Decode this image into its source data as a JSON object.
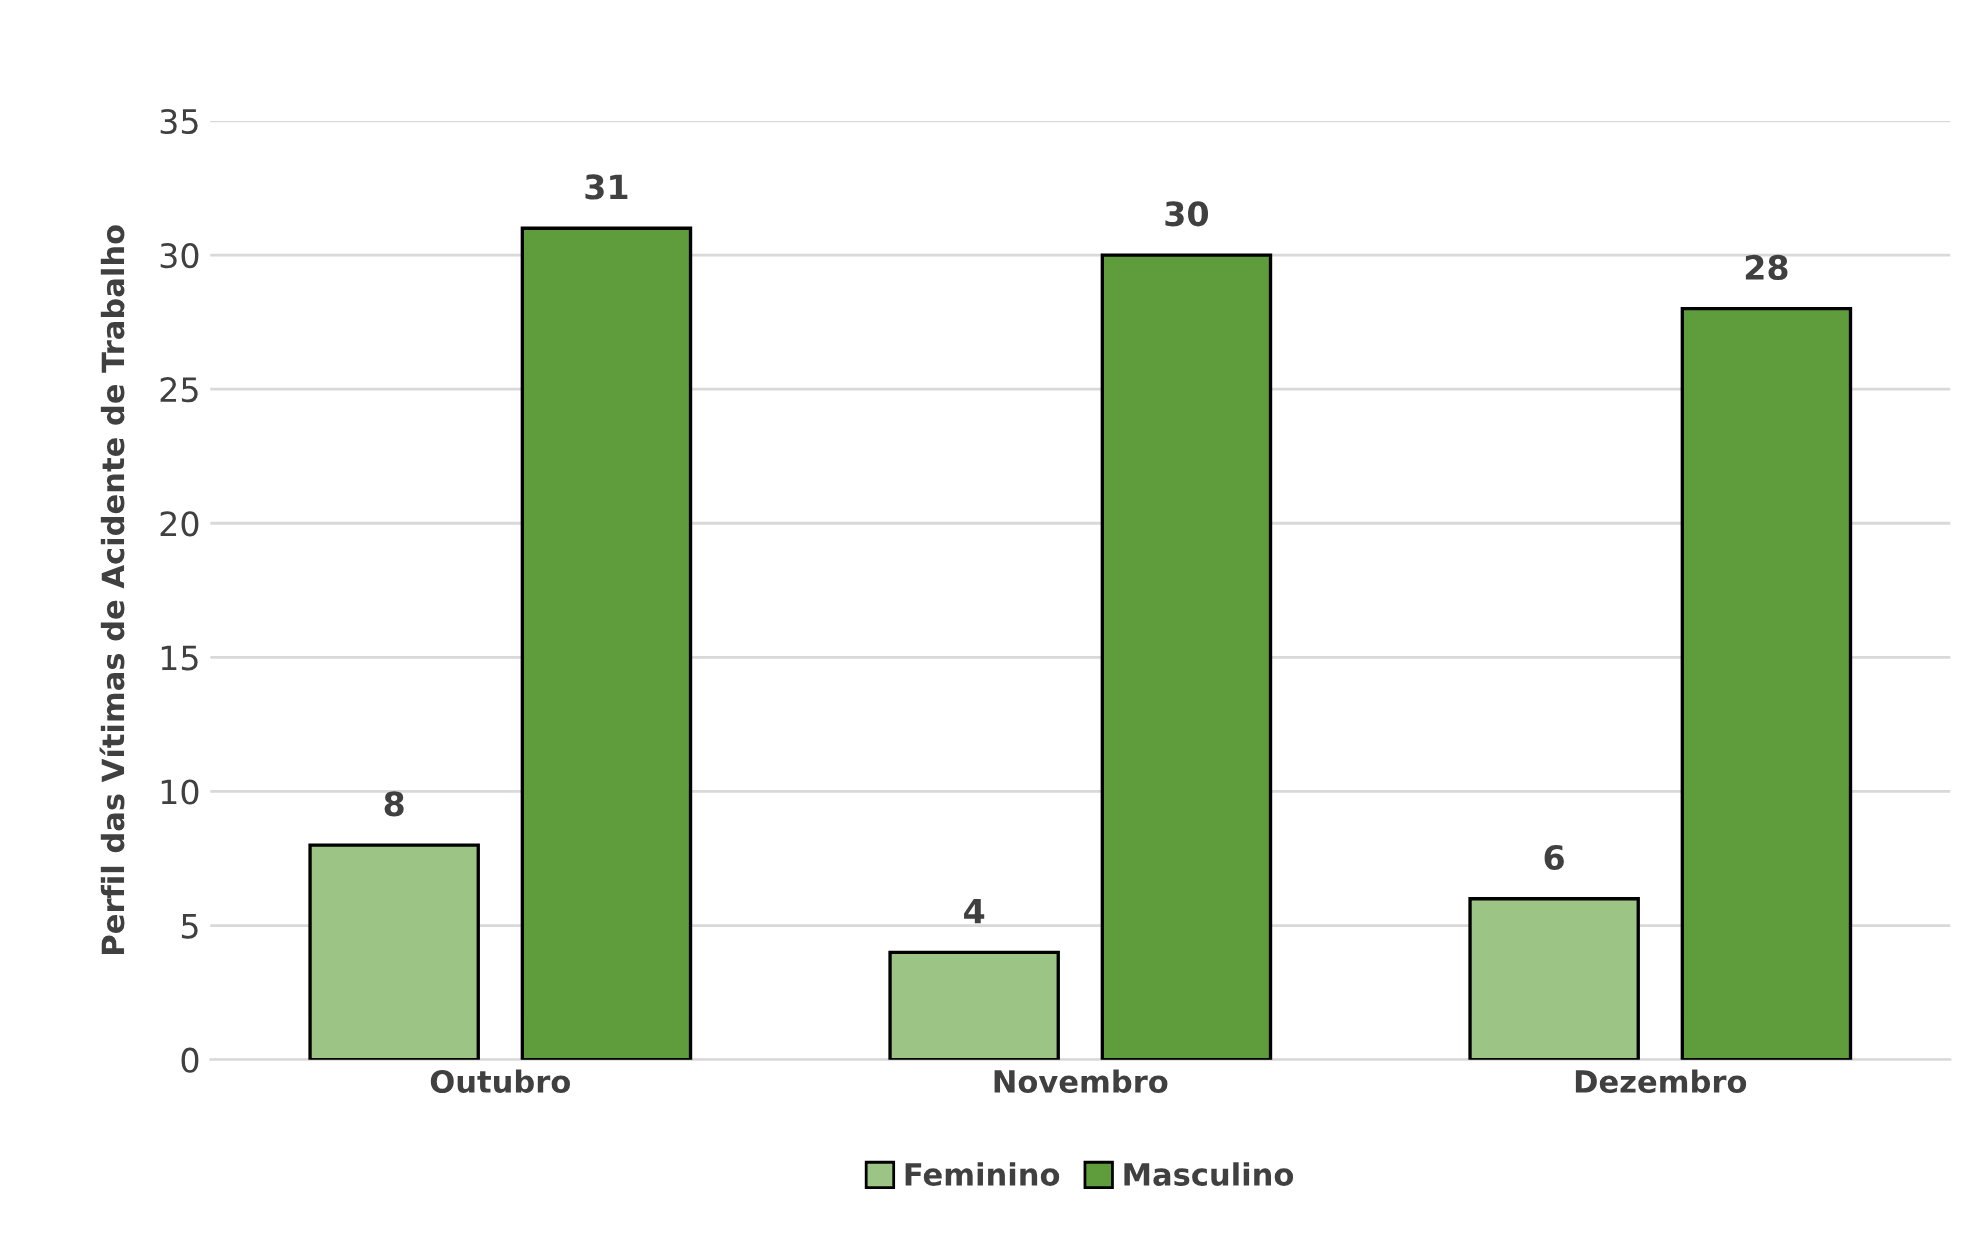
{
  "chart_data": {
    "type": "bar",
    "ylabel": "Perfil das Vítimas de Acidente de Trabalho",
    "categories": [
      "Outubro",
      "Novembro",
      "Dezembro"
    ],
    "series": [
      {
        "name": "Feminino",
        "color": "#9cc585",
        "values": [
          8,
          4,
          6
        ]
      },
      {
        "name": "Masculino",
        "color": "#5e9c3c",
        "values": [
          31,
          30,
          28
        ]
      }
    ],
    "ylim": [
      0,
      35
    ],
    "yticks": [
      0,
      5,
      10,
      15,
      20,
      25,
      30,
      35
    ],
    "grid": "y",
    "legend": "bottom",
    "data_labels": true
  }
}
